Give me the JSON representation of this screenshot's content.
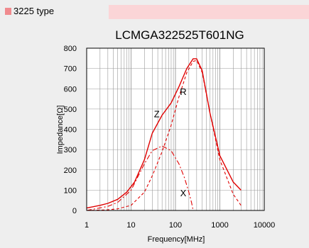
{
  "header": {
    "type_label": "3225 type"
  },
  "colors": {
    "accent": "#f08a8e",
    "bar": "#fbd5d7",
    "curve": "#e00000"
  },
  "chart_data": {
    "type": "line",
    "title": "LCMGA322525T601NG",
    "xlabel": "Frequency[MHz]",
    "ylabel": "Impedance[Ω]",
    "xscale": "log",
    "xlim": [
      1,
      10000
    ],
    "ylim": [
      0,
      800
    ],
    "x_ticks": [
      1,
      10,
      100,
      1000,
      10000
    ],
    "x_tick_labels": [
      "1",
      "10",
      "100",
      "1000",
      "10000"
    ],
    "y_ticks": [
      0,
      100,
      200,
      300,
      400,
      500,
      600,
      700,
      800
    ],
    "y_tick_labels": [
      "0",
      "100",
      "200",
      "300",
      "400",
      "500",
      "600",
      "700",
      "800"
    ],
    "grid": true,
    "series": [
      {
        "name": "Z",
        "style": "solid",
        "x": [
          1,
          2,
          3,
          5,
          8,
          12,
          20,
          30,
          50,
          80,
          120,
          180,
          250,
          300,
          400,
          600,
          1000,
          2000,
          3000
        ],
        "y": [
          12,
          25,
          35,
          55,
          90,
          140,
          250,
          380,
          470,
          530,
          610,
          700,
          748,
          748,
          690,
          480,
          270,
          140,
          100
        ]
      },
      {
        "name": "R",
        "style": "dashed",
        "x": [
          1,
          3,
          5,
          10,
          20,
          30,
          50,
          80,
          120,
          180,
          250,
          300,
          400,
          600,
          1000,
          2000,
          3000
        ],
        "y": [
          0,
          3,
          8,
          25,
          90,
          170,
          290,
          420,
          560,
          680,
          735,
          740,
          680,
          480,
          250,
          80,
          25
        ]
      },
      {
        "name": "X",
        "style": "dashdot",
        "x": [
          1,
          3,
          5,
          10,
          20,
          30,
          50,
          80,
          120,
          160,
          200,
          230,
          250
        ],
        "y": [
          0,
          20,
          40,
          100,
          230,
          295,
          318,
          295,
          230,
          160,
          90,
          40,
          0
        ]
      }
    ],
    "annotations": [
      {
        "text": "Z",
        "x": 38,
        "y": 460
      },
      {
        "text": "R",
        "x": 150,
        "y": 570
      },
      {
        "text": "X",
        "x": 150,
        "y": 70
      }
    ]
  }
}
